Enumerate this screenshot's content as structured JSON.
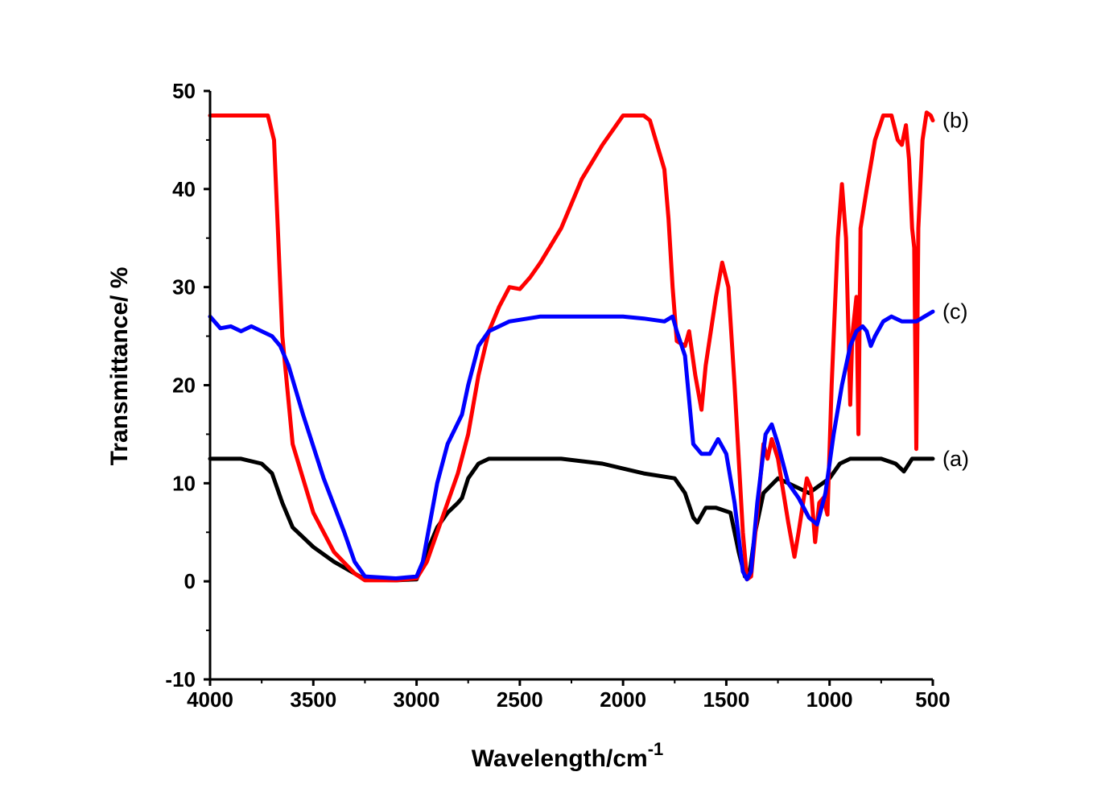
{
  "chart_data": {
    "type": "line",
    "title": "",
    "xlabel": "Wavelength/cm",
    "xlabel_superscript": "-1",
    "ylabel": "Transmittance/ %",
    "xlim": [
      4000,
      500
    ],
    "ylim": [
      -10,
      50
    ],
    "x_reversed": true,
    "grid": false,
    "legend": "none",
    "x_ticks": [
      4000,
      3500,
      3000,
      2500,
      2000,
      1500,
      1000,
      500
    ],
    "y_ticks": [
      -10,
      0,
      10,
      20,
      30,
      40,
      50
    ],
    "series": [
      {
        "name": "(a)",
        "color": "#000000",
        "points": [
          [
            4000,
            12.5
          ],
          [
            3850,
            12.5
          ],
          [
            3750,
            12.0
          ],
          [
            3700,
            11.0
          ],
          [
            3650,
            8.0
          ],
          [
            3600,
            5.5
          ],
          [
            3500,
            3.5
          ],
          [
            3400,
            2.0
          ],
          [
            3300,
            0.8
          ],
          [
            3250,
            0.2
          ],
          [
            3100,
            0.1
          ],
          [
            3000,
            0.2
          ],
          [
            2950,
            3.0
          ],
          [
            2900,
            5.5
          ],
          [
            2850,
            7.0
          ],
          [
            2800,
            8.0
          ],
          [
            2780,
            8.5
          ],
          [
            2750,
            10.5
          ],
          [
            2700,
            12.0
          ],
          [
            2650,
            12.5
          ],
          [
            2500,
            12.5
          ],
          [
            2300,
            12.5
          ],
          [
            2100,
            12.0
          ],
          [
            2000,
            11.5
          ],
          [
            1900,
            11.0
          ],
          [
            1750,
            10.5
          ],
          [
            1700,
            9.0
          ],
          [
            1660,
            6.5
          ],
          [
            1640,
            6.0
          ],
          [
            1600,
            7.5
          ],
          [
            1550,
            7.5
          ],
          [
            1480,
            7.0
          ],
          [
            1440,
            3.0
          ],
          [
            1410,
            0.5
          ],
          [
            1390,
            0.5
          ],
          [
            1360,
            5.0
          ],
          [
            1320,
            9.0
          ],
          [
            1250,
            10.5
          ],
          [
            1150,
            9.5
          ],
          [
            1100,
            9.0
          ],
          [
            1000,
            10.5
          ],
          [
            950,
            12.0
          ],
          [
            900,
            12.5
          ],
          [
            800,
            12.5
          ],
          [
            750,
            12.5
          ],
          [
            680,
            12.0
          ],
          [
            640,
            11.2
          ],
          [
            600,
            12.5
          ],
          [
            500,
            12.5
          ]
        ]
      },
      {
        "name": "(b)",
        "color": "#ff0000",
        "points": [
          [
            4000,
            47.5
          ],
          [
            3900,
            47.5
          ],
          [
            3800,
            47.5
          ],
          [
            3720,
            47.5
          ],
          [
            3690,
            45.0
          ],
          [
            3670,
            35.0
          ],
          [
            3650,
            25.0
          ],
          [
            3600,
            14.0
          ],
          [
            3500,
            7.0
          ],
          [
            3400,
            3.0
          ],
          [
            3300,
            0.8
          ],
          [
            3250,
            0.1
          ],
          [
            3100,
            0.1
          ],
          [
            3000,
            0.3
          ],
          [
            2950,
            2.0
          ],
          [
            2900,
            5.0
          ],
          [
            2800,
            11.0
          ],
          [
            2750,
            15.0
          ],
          [
            2700,
            21.0
          ],
          [
            2650,
            25.5
          ],
          [
            2600,
            28.0
          ],
          [
            2550,
            30.0
          ],
          [
            2500,
            29.8
          ],
          [
            2450,
            31.0
          ],
          [
            2400,
            32.5
          ],
          [
            2300,
            36.0
          ],
          [
            2200,
            41.0
          ],
          [
            2100,
            44.5
          ],
          [
            2000,
            47.5
          ],
          [
            1900,
            47.5
          ],
          [
            1870,
            47.0
          ],
          [
            1800,
            42.0
          ],
          [
            1780,
            37.0
          ],
          [
            1760,
            30.0
          ],
          [
            1740,
            24.5
          ],
          [
            1700,
            24.0
          ],
          [
            1680,
            25.5
          ],
          [
            1650,
            21.0
          ],
          [
            1620,
            17.5
          ],
          [
            1600,
            22.0
          ],
          [
            1550,
            29.0
          ],
          [
            1520,
            32.5
          ],
          [
            1490,
            30.0
          ],
          [
            1460,
            20.0
          ],
          [
            1420,
            5.0
          ],
          [
            1400,
            0.2
          ],
          [
            1380,
            0.5
          ],
          [
            1350,
            7.0
          ],
          [
            1320,
            14.0
          ],
          [
            1300,
            12.5
          ],
          [
            1280,
            14.5
          ],
          [
            1250,
            12.5
          ],
          [
            1200,
            6.0
          ],
          [
            1170,
            2.5
          ],
          [
            1150,
            5.0
          ],
          [
            1110,
            10.5
          ],
          [
            1090,
            9.5
          ],
          [
            1070,
            4.0
          ],
          [
            1050,
            8.0
          ],
          [
            1030,
            8.5
          ],
          [
            1010,
            6.8
          ],
          [
            990,
            20.0
          ],
          [
            960,
            35.0
          ],
          [
            940,
            40.5
          ],
          [
            920,
            35.0
          ],
          [
            900,
            18.0
          ],
          [
            890,
            25.0
          ],
          [
            870,
            29.0
          ],
          [
            860,
            15.0
          ],
          [
            850,
            36.0
          ],
          [
            820,
            40.0
          ],
          [
            780,
            45.0
          ],
          [
            740,
            47.5
          ],
          [
            700,
            47.5
          ],
          [
            670,
            45.0
          ],
          [
            650,
            44.5
          ],
          [
            630,
            46.5
          ],
          [
            615,
            43.0
          ],
          [
            600,
            36.0
          ],
          [
            590,
            34.0
          ],
          [
            580,
            13.5
          ],
          [
            570,
            36.0
          ],
          [
            550,
            45.0
          ],
          [
            530,
            47.8
          ],
          [
            510,
            47.5
          ],
          [
            500,
            47.0
          ]
        ]
      },
      {
        "name": "(c)",
        "color": "#0000ff",
        "points": [
          [
            4000,
            27.0
          ],
          [
            3950,
            25.8
          ],
          [
            3900,
            26.0
          ],
          [
            3850,
            25.5
          ],
          [
            3800,
            26.0
          ],
          [
            3750,
            25.5
          ],
          [
            3700,
            25.0
          ],
          [
            3660,
            24.0
          ],
          [
            3620,
            22.0
          ],
          [
            3550,
            17.0
          ],
          [
            3450,
            10.5
          ],
          [
            3350,
            5.0
          ],
          [
            3300,
            2.0
          ],
          [
            3250,
            0.5
          ],
          [
            3100,
            0.3
          ],
          [
            3000,
            0.5
          ],
          [
            2970,
            2.0
          ],
          [
            2900,
            10.0
          ],
          [
            2850,
            14.0
          ],
          [
            2780,
            17.0
          ],
          [
            2750,
            20.0
          ],
          [
            2700,
            24.0
          ],
          [
            2650,
            25.5
          ],
          [
            2550,
            26.5
          ],
          [
            2400,
            27.0
          ],
          [
            2200,
            27.0
          ],
          [
            2000,
            27.0
          ],
          [
            1900,
            26.8
          ],
          [
            1800,
            26.5
          ],
          [
            1760,
            27.0
          ],
          [
            1740,
            25.5
          ],
          [
            1700,
            23.0
          ],
          [
            1660,
            14.0
          ],
          [
            1620,
            13.0
          ],
          [
            1580,
            13.0
          ],
          [
            1540,
            14.5
          ],
          [
            1500,
            13.0
          ],
          [
            1460,
            8.0
          ],
          [
            1420,
            1.0
          ],
          [
            1400,
            0.2
          ],
          [
            1380,
            1.0
          ],
          [
            1350,
            8.0
          ],
          [
            1310,
            15.0
          ],
          [
            1280,
            16.0
          ],
          [
            1250,
            14.0
          ],
          [
            1200,
            10.0
          ],
          [
            1150,
            8.5
          ],
          [
            1100,
            6.5
          ],
          [
            1060,
            5.8
          ],
          [
            1020,
            9.0
          ],
          [
            980,
            15.0
          ],
          [
            940,
            20.0
          ],
          [
            900,
            24.0
          ],
          [
            870,
            25.5
          ],
          [
            840,
            26.0
          ],
          [
            820,
            25.5
          ],
          [
            800,
            24.0
          ],
          [
            780,
            25.0
          ],
          [
            740,
            26.5
          ],
          [
            700,
            27.0
          ],
          [
            650,
            26.5
          ],
          [
            620,
            26.5
          ],
          [
            580,
            26.5
          ],
          [
            540,
            27.0
          ],
          [
            500,
            27.5
          ]
        ]
      }
    ]
  }
}
